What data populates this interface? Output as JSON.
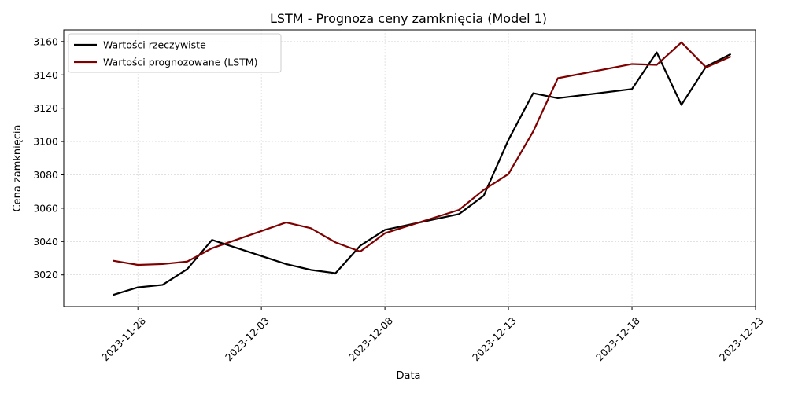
{
  "chart_data": {
    "type": "line",
    "title": "LSTM - Prognoza ceny zamknięcia (Model 1)",
    "xlabel": "Data",
    "ylabel": "Cena zamknięcia",
    "x_ticks": [
      "2023-11-28",
      "2023-12-03",
      "2023-12-08",
      "2023-12-13",
      "2023-12-18",
      "2023-12-23"
    ],
    "y_ticks": [
      3020,
      3040,
      3060,
      3080,
      3100,
      3120,
      3140,
      3160
    ],
    "xlim": [
      "2023-11-25",
      "2023-12-23"
    ],
    "ylim": [
      3001,
      3167
    ],
    "grid": true,
    "legend_position": "top-left",
    "series": [
      {
        "name": "Wartości rzeczywiste",
        "color": "#000000",
        "points": [
          [
            "2023-11-27",
            3008
          ],
          [
            "2023-11-28",
            3012.5
          ],
          [
            "2023-11-29",
            3014
          ],
          [
            "2023-11-30",
            3023.5
          ],
          [
            "2023-12-01",
            3041
          ],
          [
            "2023-12-04",
            3026.5
          ],
          [
            "2023-12-05",
            3023
          ],
          [
            "2023-12-06",
            3021
          ],
          [
            "2023-12-07",
            3037.5
          ],
          [
            "2023-12-08",
            3047
          ],
          [
            "2023-12-11",
            3056.5
          ],
          [
            "2023-12-12",
            3067.5
          ],
          [
            "2023-12-13",
            3101
          ],
          [
            "2023-12-14",
            3129
          ],
          [
            "2023-12-15",
            3126
          ],
          [
            "2023-12-18",
            3131.5
          ],
          [
            "2023-12-19",
            3153.5
          ],
          [
            "2023-12-20",
            3122
          ],
          [
            "2023-12-21",
            3145
          ],
          [
            "2023-12-22",
            3152.5
          ]
        ]
      },
      {
        "name": "Wartości prognozowane (LSTM)",
        "color": "#7f0000",
        "points": [
          [
            "2023-11-27",
            3028.5
          ],
          [
            "2023-11-28",
            3026
          ],
          [
            "2023-11-29",
            3026.5
          ],
          [
            "2023-11-30",
            3028
          ],
          [
            "2023-12-01",
            3036
          ],
          [
            "2023-12-04",
            3051.5
          ],
          [
            "2023-12-05",
            3048
          ],
          [
            "2023-12-06",
            3039.5
          ],
          [
            "2023-12-07",
            3034
          ],
          [
            "2023-12-08",
            3045
          ],
          [
            "2023-12-11",
            3059
          ],
          [
            "2023-12-12",
            3071
          ],
          [
            "2023-12-13",
            3080.5
          ],
          [
            "2023-12-14",
            3106
          ],
          [
            "2023-12-15",
            3138
          ],
          [
            "2023-12-18",
            3146.5
          ],
          [
            "2023-12-19",
            3146
          ],
          [
            "2023-12-20",
            3159.5
          ],
          [
            "2023-12-21",
            3144.5
          ],
          [
            "2023-12-22",
            3151
          ]
        ]
      }
    ]
  }
}
